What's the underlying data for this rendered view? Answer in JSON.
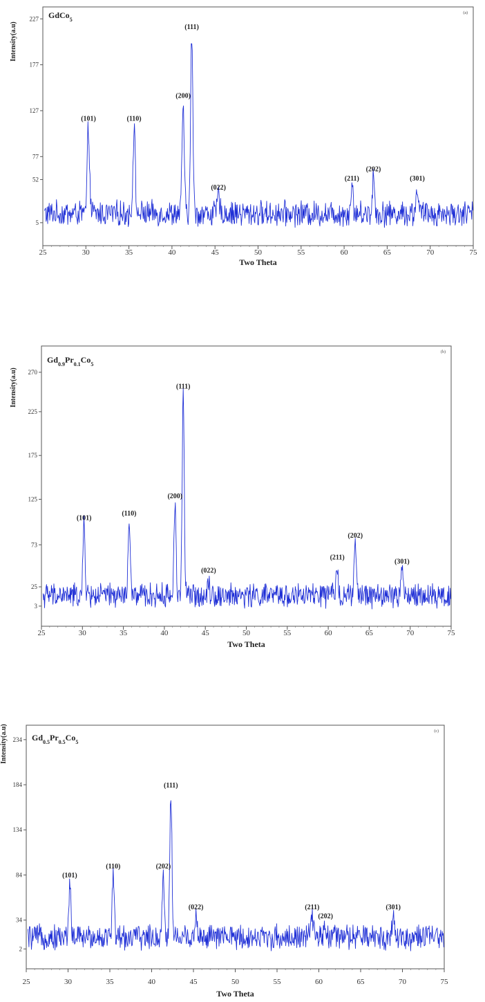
{
  "chart_data": [
    {
      "type": "line",
      "title": "GdCo5",
      "title_main": "GdCo",
      "title_parts": [
        {
          "t": "GdCo",
          "sub": false
        },
        {
          "t": "5",
          "sub": true
        }
      ],
      "panel_tag": "(a)",
      "xlabel": "Two Theta",
      "ylabel": "Intensity(a.u)",
      "xlim": [
        25,
        75
      ],
      "ylim": [
        -20,
        240
      ],
      "xticks": [
        25,
        30,
        35,
        40,
        45,
        50,
        55,
        60,
        65,
        70,
        75
      ],
      "yticks": [
        5,
        52,
        77,
        127,
        177,
        227
      ],
      "baseline": 15,
      "noise": 12,
      "color": "#1f2fd6",
      "peaks": [
        {
          "label": "(101)",
          "x": 30.3,
          "y": 110
        },
        {
          "label": "(110)",
          "x": 35.6,
          "y": 110
        },
        {
          "label": "(200)",
          "x": 41.3,
          "y": 135
        },
        {
          "label": "(111)",
          "x": 42.3,
          "y": 210
        },
        {
          "label": "(022)",
          "x": 45.4,
          "y": 35
        },
        {
          "label": "(211)",
          "x": 60.9,
          "y": 45
        },
        {
          "label": "(202)",
          "x": 63.4,
          "y": 55
        },
        {
          "label": "(301)",
          "x": 68.5,
          "y": 45
        }
      ]
    },
    {
      "type": "line",
      "title": "Gd0.9Pr0.1Co5",
      "title_parts": [
        {
          "t": "Gd",
          "sub": false
        },
        {
          "t": "0.9",
          "sub": true
        },
        {
          "t": "Pr",
          "sub": false
        },
        {
          "t": "0.1",
          "sub": true
        },
        {
          "t": "Co",
          "sub": false
        },
        {
          "t": "5",
          "sub": true
        }
      ],
      "panel_tag": "(b)",
      "xlabel": "Two Theta",
      "ylabel": "Intensity(a.u)",
      "xlim": [
        25,
        75
      ],
      "ylim": [
        -20,
        300
      ],
      "xticks": [
        25,
        30,
        35,
        40,
        45,
        50,
        55,
        60,
        65,
        70,
        75
      ],
      "yticks": [
        3,
        25,
        73,
        125,
        175,
        225,
        270
      ],
      "baseline": 15,
      "noise": 12,
      "color": "#1f2fd6",
      "peaks": [
        {
          "label": "(101)",
          "x": 30.2,
          "y": 95
        },
        {
          "label": "(110)",
          "x": 35.7,
          "y": 100
        },
        {
          "label": "(200)",
          "x": 41.3,
          "y": 120
        },
        {
          "label": "(111)",
          "x": 42.3,
          "y": 245
        },
        {
          "label": "(022)",
          "x": 45.4,
          "y": 35
        },
        {
          "label": "(211)",
          "x": 61.1,
          "y": 50
        },
        {
          "label": "(202)",
          "x": 63.3,
          "y": 75
        },
        {
          "label": "(301)",
          "x": 69.0,
          "y": 45
        }
      ]
    },
    {
      "type": "line",
      "title": "Gd0.5Pr0.5Co5",
      "title_parts": [
        {
          "t": "Gd",
          "sub": false
        },
        {
          "t": "0.5",
          "sub": true
        },
        {
          "t": "Pr",
          "sub": false
        },
        {
          "t": "0.5",
          "sub": true
        },
        {
          "t": "Co",
          "sub": false
        },
        {
          "t": "5",
          "sub": true
        }
      ],
      "panel_tag": "(c)",
      "xlabel": "Two Theta",
      "ylabel": "Intensity(a.u)",
      "xlim": [
        25,
        75
      ],
      "ylim": [
        -20,
        250
      ],
      "xticks": [
        25,
        30,
        35,
        40,
        45,
        50,
        55,
        60,
        65,
        70,
        75
      ],
      "yticks": [
        2,
        34,
        84,
        134,
        184,
        234
      ],
      "baseline": 15,
      "noise": 12,
      "color": "#1f2fd6",
      "peaks": [
        {
          "label": "(101)",
          "x": 30.2,
          "y": 75
        },
        {
          "label": "(110)",
          "x": 35.4,
          "y": 85
        },
        {
          "label": "(202)",
          "x": 41.4,
          "y": 85
        },
        {
          "label": "(111)",
          "x": 42.3,
          "y": 175
        },
        {
          "label": "(022)",
          "x": 45.3,
          "y": 40
        },
        {
          "label": "(211)",
          "x": 59.2,
          "y": 40
        },
        {
          "label": "(202)",
          "x": 60.8,
          "y": 30
        },
        {
          "label": "(301)",
          "x": 68.9,
          "y": 40
        }
      ]
    }
  ]
}
